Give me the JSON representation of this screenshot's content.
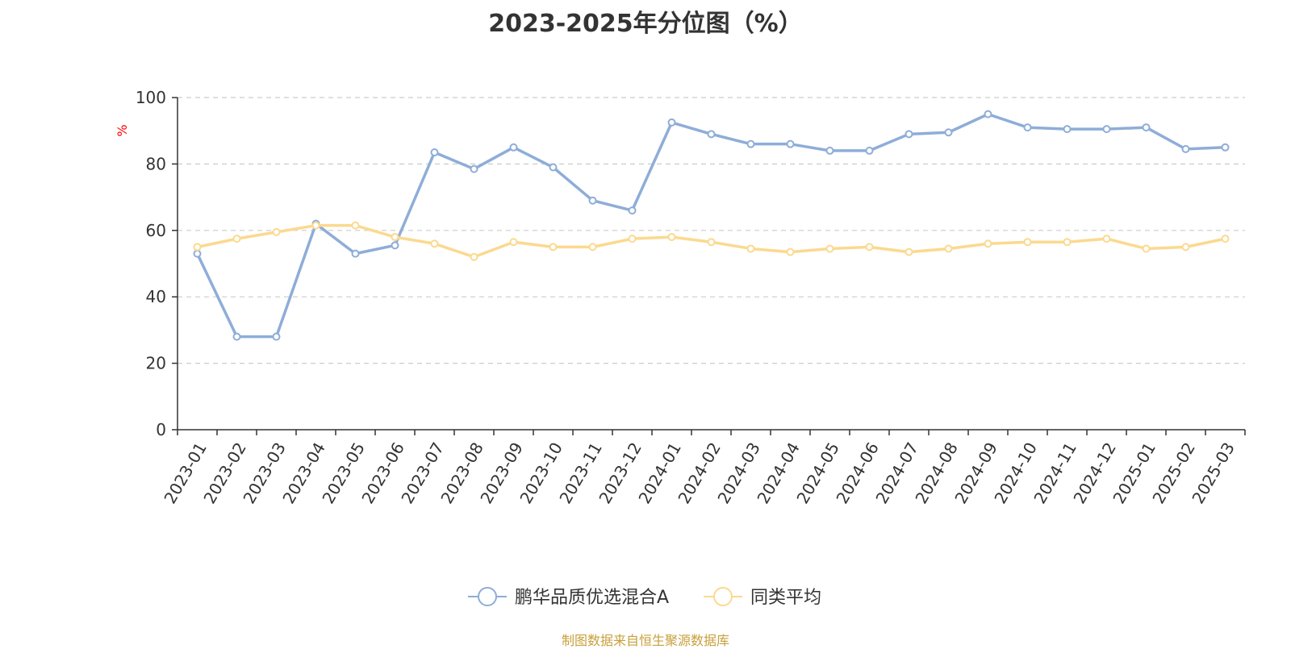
{
  "chart_data": {
    "type": "line",
    "title": "2023-2025年分位图（%）",
    "ylabel": "%",
    "xlabel": "",
    "ylim": [
      0,
      100
    ],
    "yticks": [
      0,
      20,
      40,
      60,
      80,
      100
    ],
    "grid": "horizontal dashed",
    "legend_position": "bottom-center",
    "categories": [
      "2023-01",
      "2023-02",
      "2023-03",
      "2023-04",
      "2023-05",
      "2023-06",
      "2023-07",
      "2023-08",
      "2023-09",
      "2023-10",
      "2023-11",
      "2023-12",
      "2024-01",
      "2024-02",
      "2024-03",
      "2024-04",
      "2024-05",
      "2024-06",
      "2024-07",
      "2024-08",
      "2024-09",
      "2024-10",
      "2024-11",
      "2024-12",
      "2025-01",
      "2025-02",
      "2025-03"
    ],
    "series": [
      {
        "name": "鹏华品质优选混合A",
        "color": "#8eadd8",
        "values": [
          53,
          28,
          28,
          62,
          53,
          55.5,
          83.5,
          78.5,
          85,
          79,
          69,
          66,
          92.5,
          89,
          86,
          86,
          84,
          84,
          89,
          89.5,
          95,
          91,
          90.5,
          90.5,
          91,
          84.5,
          85
        ]
      },
      {
        "name": "同类平均",
        "color": "#fbd98f",
        "values": [
          55,
          57.5,
          59.5,
          61.5,
          61.5,
          58,
          56,
          52,
          56.5,
          55,
          55,
          57.5,
          58,
          56.5,
          54.5,
          53.5,
          54.5,
          55,
          53.5,
          54.5,
          56,
          56.5,
          56.5,
          57.5,
          54.5,
          55,
          57.5
        ]
      }
    ]
  },
  "footer": {
    "source": "制图数据来自恒生聚源数据库"
  }
}
